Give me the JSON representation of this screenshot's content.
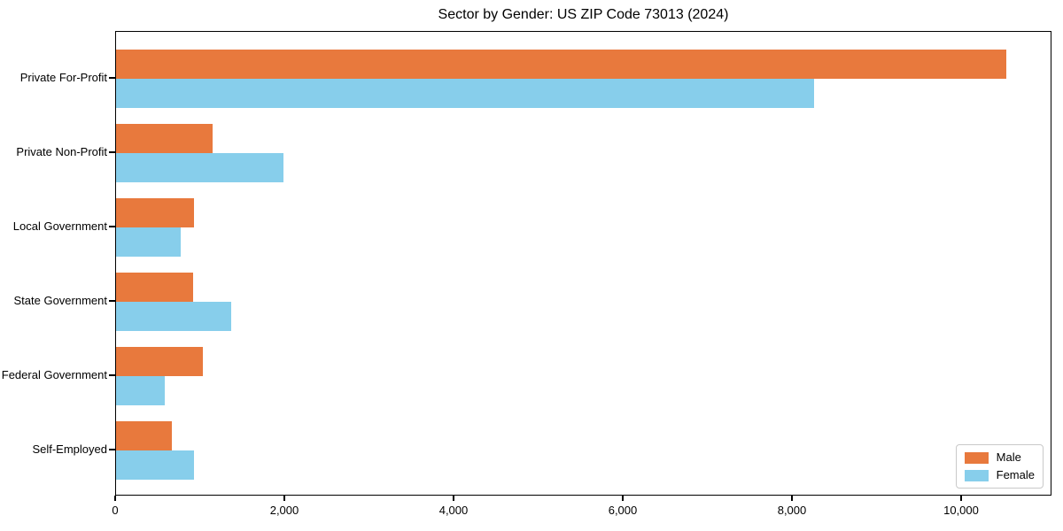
{
  "chart_data": {
    "type": "bar",
    "orientation": "horizontal",
    "title": "Sector by Gender: US ZIP Code 73013 (2024)",
    "categories": [
      "Private For-Profit",
      "Private Non-Profit",
      "Local Government",
      "State Government",
      "Federal Government",
      "Self-Employed"
    ],
    "series": [
      {
        "name": "Male",
        "color": "#e8793d",
        "values": [
          10520,
          1140,
          920,
          910,
          1025,
          660
        ]
      },
      {
        "name": "Female",
        "color": "#87ceeb",
        "values": [
          8250,
          1980,
          765,
          1360,
          575,
          920
        ]
      }
    ],
    "xlabel": "",
    "ylabel": "",
    "xlim": [
      0,
      11068
    ],
    "x_ticks": [
      0,
      2000,
      4000,
      6000,
      8000,
      10000
    ],
    "x_tick_labels": [
      "0",
      "2,000",
      "4,000",
      "6,000",
      "8,000",
      "10,000"
    ],
    "grid": false,
    "legend": {
      "position": "lower right",
      "entries": [
        "Male",
        "Female"
      ]
    }
  }
}
